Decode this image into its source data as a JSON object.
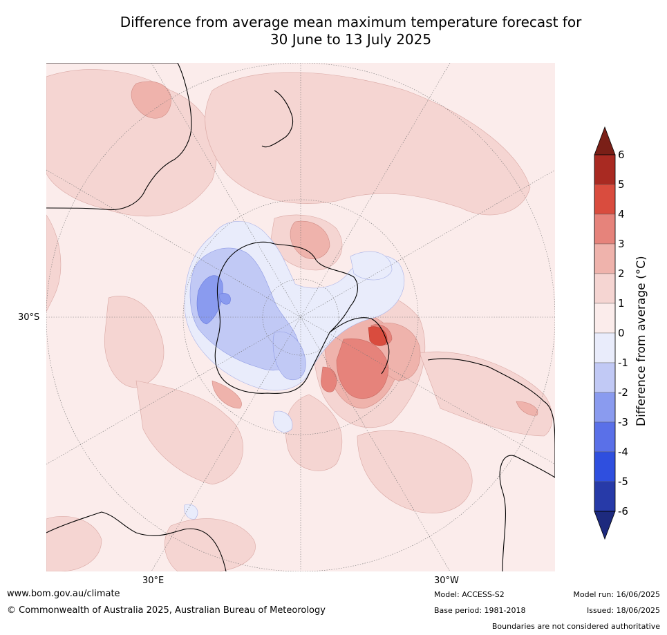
{
  "title": {
    "line1": "Difference from average mean maximum temperature forecast for",
    "line2": "30 June to 13 July 2025"
  },
  "map": {
    "projection": "south-polar-stereographic",
    "latitude_labels": [
      "30°S"
    ],
    "longitude_labels": [
      "30°E",
      "30°W"
    ],
    "land_outline_color": "#000000",
    "graticule_color": "#777777"
  },
  "colorbar": {
    "label": "Difference from average (°C)",
    "ticks": [
      "6",
      "5",
      "4",
      "3",
      "2",
      "1",
      "0",
      "-1",
      "-2",
      "-3",
      "-4",
      "-5",
      "-6"
    ],
    "colors": [
      "#7a1f17",
      "#a92a22",
      "#d94c3e",
      "#e6837b",
      "#efb3ac",
      "#f5d5d2",
      "#fbeceb",
      "#e9ecfb",
      "#c1c9f5",
      "#8a9bef",
      "#5a70e8",
      "#2f4fdf",
      "#273aa8",
      "#1d2a7e"
    ]
  },
  "footer": {
    "website": "www.bom.gov.au/climate",
    "copyright": "© Commonwealth of Australia 2025, Australian Bureau of Meteorology",
    "model": "Model: ACCESS-S2",
    "base_period": "Base period: 1981-2018",
    "model_run": "Model run: 16/06/2025",
    "issued": "Issued: 18/06/2025",
    "disclaimer": "Boundaries are not considered authoritative"
  }
}
